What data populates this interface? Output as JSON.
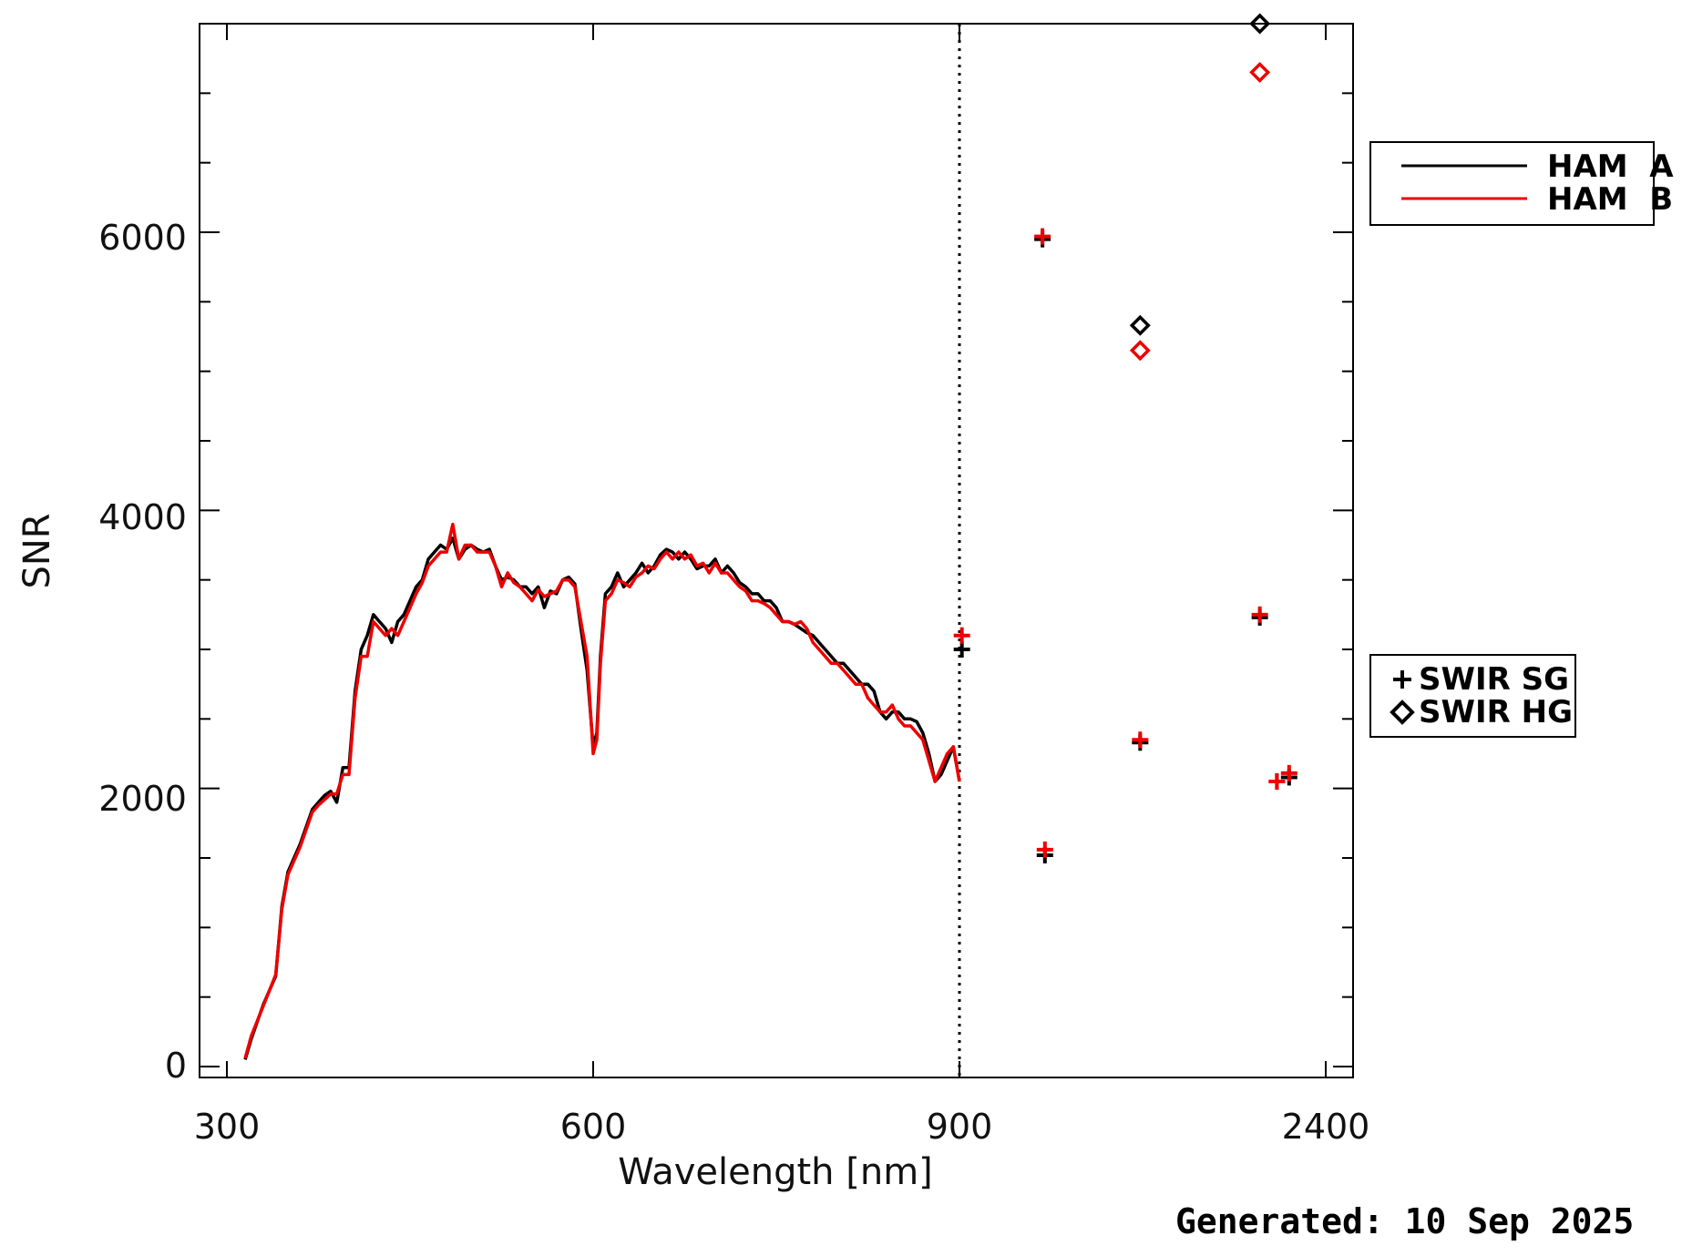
{
  "chart_data": {
    "type": "line",
    "xlabel": "Wavelength [nm]",
    "ylabel": "SNR",
    "x_ticks": [
      "300",
      "600",
      "900",
      "2400"
    ],
    "y_ticks": [
      "0",
      "2000",
      "4000",
      "6000"
    ],
    "ylim": [
      0,
      7500
    ],
    "grid": false,
    "vline": {
      "x": 900,
      "style": "dotted",
      "color": "#000000"
    },
    "line_series": [
      {
        "name": "HAM A",
        "color": "#000000",
        "x": [
          315,
          320,
          330,
          340,
          345,
          350,
          360,
          370,
          375,
          380,
          385,
          390,
          395,
          400,
          405,
          410,
          415,
          420,
          425,
          430,
          435,
          440,
          445,
          450,
          455,
          460,
          465,
          470,
          475,
          480,
          485,
          490,
          495,
          500,
          505,
          510,
          515,
          520,
          525,
          530,
          535,
          540,
          545,
          550,
          555,
          560,
          565,
          570,
          575,
          580,
          585,
          590,
          595,
          600,
          603,
          606,
          610,
          615,
          620,
          625,
          630,
          635,
          640,
          645,
          650,
          655,
          660,
          665,
          670,
          675,
          680,
          685,
          690,
          695,
          700,
          705,
          710,
          715,
          720,
          725,
          730,
          735,
          740,
          745,
          750,
          755,
          760,
          765,
          770,
          775,
          780,
          785,
          790,
          795,
          800,
          805,
          810,
          815,
          820,
          825,
          830,
          835,
          840,
          845,
          850,
          855,
          860,
          865,
          870,
          875,
          880,
          885,
          890,
          895,
          900
        ],
        "y": [
          50,
          200,
          450,
          650,
          1150,
          1400,
          1600,
          1850,
          1900,
          1950,
          1980,
          1900,
          2150,
          2150,
          2700,
          3000,
          3100,
          3250,
          3200,
          3150,
          3050,
          3200,
          3250,
          3350,
          3450,
          3500,
          3650,
          3700,
          3750,
          3720,
          3800,
          3650,
          3720,
          3750,
          3720,
          3700,
          3720,
          3600,
          3500,
          3520,
          3500,
          3450,
          3450,
          3400,
          3450,
          3300,
          3420,
          3400,
          3500,
          3520,
          3470,
          3150,
          2850,
          2300,
          2400,
          2950,
          3400,
          3450,
          3550,
          3450,
          3500,
          3550,
          3620,
          3550,
          3600,
          3680,
          3720,
          3700,
          3650,
          3700,
          3650,
          3580,
          3600,
          3600,
          3650,
          3550,
          3600,
          3550,
          3480,
          3450,
          3400,
          3400,
          3350,
          3350,
          3300,
          3200,
          3200,
          3180,
          3150,
          3120,
          3100,
          3050,
          3000,
          2950,
          2900,
          2900,
          2850,
          2800,
          2750,
          2750,
          2700,
          2550,
          2500,
          2550,
          2550,
          2500,
          2500,
          2480,
          2400,
          2250,
          2050,
          2100,
          2200,
          2300,
          2050
        ]
      },
      {
        "name": "HAM B",
        "color": "#ee0000",
        "x": [
          315,
          320,
          330,
          340,
          345,
          350,
          360,
          370,
          375,
          380,
          385,
          390,
          395,
          400,
          405,
          410,
          415,
          420,
          425,
          430,
          435,
          440,
          445,
          450,
          455,
          460,
          465,
          470,
          475,
          480,
          485,
          490,
          495,
          500,
          505,
          510,
          515,
          520,
          525,
          530,
          535,
          540,
          545,
          550,
          555,
          560,
          565,
          570,
          575,
          580,
          585,
          590,
          595,
          600,
          603,
          606,
          610,
          615,
          620,
          625,
          630,
          635,
          640,
          645,
          650,
          655,
          660,
          665,
          670,
          675,
          680,
          685,
          690,
          695,
          700,
          705,
          710,
          715,
          720,
          725,
          730,
          735,
          740,
          745,
          750,
          755,
          760,
          765,
          770,
          775,
          780,
          785,
          790,
          795,
          800,
          805,
          810,
          815,
          820,
          825,
          830,
          835,
          840,
          845,
          850,
          855,
          860,
          865,
          870,
          875,
          880,
          885,
          890,
          895,
          900
        ],
        "y": [
          60,
          220,
          440,
          660,
          1130,
          1380,
          1580,
          1830,
          1880,
          1920,
          1960,
          1960,
          2100,
          2100,
          2650,
          2950,
          2950,
          3200,
          3150,
          3100,
          3150,
          3100,
          3200,
          3300,
          3400,
          3480,
          3600,
          3650,
          3700,
          3700,
          3900,
          3650,
          3750,
          3750,
          3700,
          3700,
          3700,
          3600,
          3450,
          3550,
          3480,
          3450,
          3400,
          3350,
          3430,
          3380,
          3400,
          3420,
          3500,
          3500,
          3450,
          3200,
          2950,
          2250,
          2350,
          2900,
          3350,
          3400,
          3500,
          3480,
          3450,
          3520,
          3550,
          3600,
          3580,
          3650,
          3700,
          3650,
          3700,
          3650,
          3680,
          3600,
          3620,
          3550,
          3620,
          3550,
          3550,
          3500,
          3450,
          3420,
          3350,
          3350,
          3330,
          3300,
          3250,
          3200,
          3200,
          3180,
          3200,
          3150,
          3050,
          3000,
          2950,
          2900,
          2900,
          2850,
          2800,
          2750,
          2750,
          2650,
          2600,
          2550,
          2550,
          2600,
          2500,
          2450,
          2450,
          2400,
          2350,
          2200,
          2050,
          2150,
          2250,
          2300,
          2050
        ]
      }
    ],
    "scatter_series": [
      {
        "name": "SWIR SG",
        "marker": "+",
        "hamA": {
          "color": "#000000",
          "x": [
            1240,
            1640,
            1250,
            2130,
            2200,
            2250,
            910
          ],
          "y": [
            5950,
            2330,
            1520,
            3230,
            2050,
            2080,
            3000
          ]
        },
        "hamB": {
          "color": "#ee0000",
          "x": [
            1240,
            1640,
            1250,
            2130,
            2200,
            2250,
            910
          ],
          "y": [
            5970,
            2350,
            1560,
            3250,
            2050,
            2110,
            3100
          ]
        }
      },
      {
        "name": "SWIR HG",
        "marker": "diamond",
        "hamA": {
          "color": "#000000",
          "x": [
            1640,
            2130
          ],
          "y": [
            5330,
            7500
          ]
        },
        "hamB": {
          "color": "#ee0000",
          "x": [
            1640,
            2130
          ],
          "y": [
            5150,
            7150
          ]
        }
      }
    ],
    "legend_lines": [
      {
        "label": "HAM  A",
        "color": "#000000"
      },
      {
        "label": "HAM  B",
        "color": "#ee0000"
      }
    ],
    "legend_markers": [
      {
        "label": "SWIR SG",
        "marker": "plus-icon"
      },
      {
        "label": "SWIR HG",
        "marker": "diamond-icon"
      }
    ]
  },
  "footer": {
    "generated": "Generated: 10 Sep 2025"
  }
}
